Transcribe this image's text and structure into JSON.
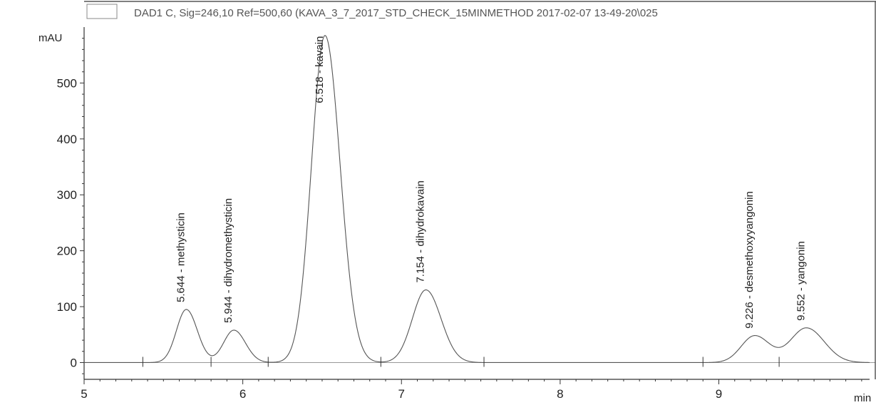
{
  "chart_data": {
    "type": "line",
    "title": "DAD1 C, Sig=246,10 Ref=500,60 (KAVA_3_7_2017_STD_CHECK_15MINMETHOD 2017-02-07 13-49-20\\025",
    "xlabel": "min",
    "ylabel": "mAU",
    "xlim": [
      5,
      9.95
    ],
    "ylim": [
      -30,
      600
    ],
    "x_ticks": [
      5,
      6,
      7,
      8,
      9
    ],
    "y_ticks": [
      0,
      100,
      200,
      300,
      400,
      500
    ],
    "grid": false,
    "legend": "top-left",
    "baseline": 0,
    "peaks": [
      {
        "rt": 5.644,
        "label": "5.644 -  methysticin",
        "height": 95,
        "sigma": 0.062
      },
      {
        "rt": 5.944,
        "label": "5.944 -  dihydromethysticin",
        "height": 58,
        "sigma": 0.065
      },
      {
        "rt": 6.518,
        "label": "6.518 -  kavain",
        "height": 585,
        "sigma": 0.085
      },
      {
        "rt": 7.154,
        "label": "7.154 -  dihydrokavain",
        "height": 130,
        "sigma": 0.085
      },
      {
        "rt": 9.226,
        "label": "9.226 -  desmethoxyyangonin",
        "height": 48,
        "sigma": 0.085
      },
      {
        "rt": 9.552,
        "label": "9.552 -  yangonin",
        "height": 62,
        "sigma": 0.1
      }
    ],
    "integration_marks": [
      5.37,
      5.8,
      6.16,
      6.87,
      7.52,
      8.9,
      9.38
    ]
  }
}
